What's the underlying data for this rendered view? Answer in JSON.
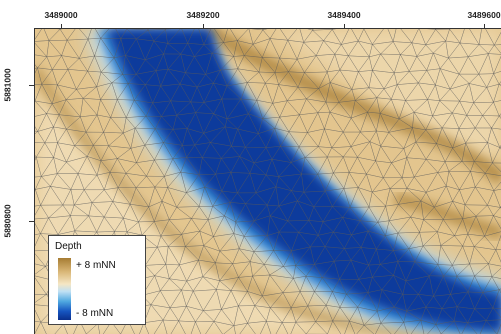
{
  "map": {
    "x_axis_ticks": [
      "3489000",
      "3489200",
      "3489400",
      "3489600"
    ],
    "y_axis_ticks": [
      "5881000",
      "5880800"
    ],
    "colors": {
      "high": "#a67c32",
      "sand": "#e3c58e",
      "shallow_light": "#f4e4c2",
      "light_blue": "#bfe0f4",
      "mid_blue": "#3f8fd8",
      "deep_blue": "#0b3a9c",
      "mesh_line": "#5a5a5a"
    }
  },
  "legend": {
    "title": "Depth",
    "max_label": "+ 8 mNN",
    "min_label": "- 8 mNN"
  }
}
